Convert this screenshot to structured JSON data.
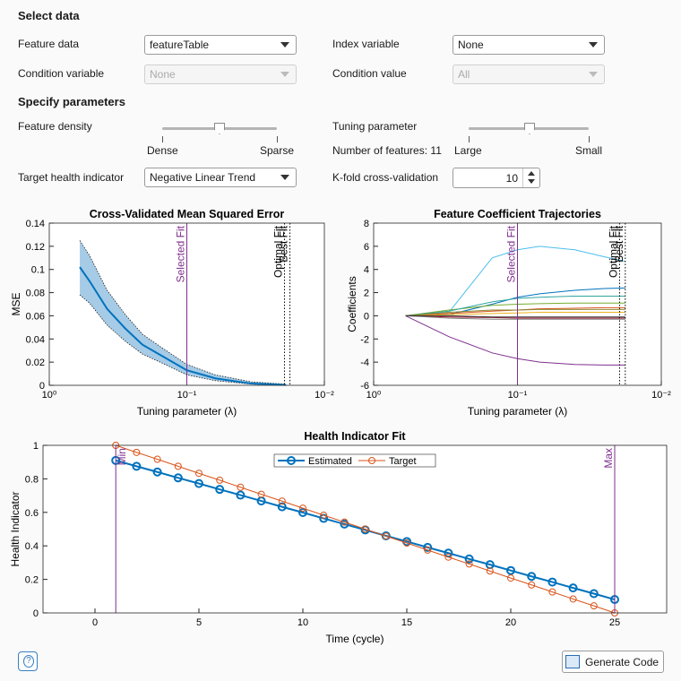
{
  "controls": {
    "select_data": {
      "title": "Select data",
      "feature_data": {
        "label": "Feature data",
        "value": "featureTable"
      },
      "index_variable": {
        "label": "Index variable",
        "value": "None"
      },
      "condition_variable": {
        "label": "Condition variable",
        "value": "None"
      },
      "condition_value": {
        "label": "Condition value",
        "value": "All"
      }
    },
    "specify_parameters": {
      "title": "Specify parameters",
      "feature_density": {
        "label": "Feature density",
        "min_label": "Dense",
        "max_label": "Sparse"
      },
      "tuning_parameter": {
        "label": "Tuning parameter",
        "min_label": "Large",
        "max_label": "Small"
      },
      "number_of_features": {
        "label": "Number of features:",
        "value": 11
      },
      "target_health_indicator": {
        "label": "Target health indicator",
        "value": "Negative Linear Trend"
      },
      "k_fold": {
        "label": "K-fold cross-validation",
        "value": 10
      }
    }
  },
  "chart_data": [
    {
      "type": "line",
      "title": "Cross-Validated Mean Squared Error",
      "xlabel": "Tuning  parameter  (λ)",
      "ylabel": "MSE",
      "xscale": "log",
      "xlim": [
        1,
        0.01
      ],
      "xticks": [
        {
          "value": 1,
          "label": "10⁰"
        },
        {
          "value": 0.1,
          "label": "10⁻¹"
        },
        {
          "value": 0.01,
          "label": "10⁻²"
        }
      ],
      "ylim": [
        0,
        0.14
      ],
      "yticks": [
        0,
        0.02,
        0.04,
        0.06,
        0.08,
        0.1,
        0.12,
        0.14
      ],
      "x": [
        0.6,
        0.51,
        0.38,
        0.28,
        0.21,
        0.15,
        0.1,
        0.062,
        0.034,
        0.019
      ],
      "series": [
        {
          "color": "#0072bd",
          "band_color": "#a6cbe6",
          "values": [
            0.102,
            0.09,
            0.066,
            0.049,
            0.035,
            0.025,
            0.013,
            0.006,
            0.0015,
            0.0003
          ],
          "upper": [
            0.125,
            0.112,
            0.082,
            0.061,
            0.044,
            0.032,
            0.018,
            0.009,
            0.003,
            0.001
          ],
          "lower": [
            0.078,
            0.071,
            0.052,
            0.038,
            0.027,
            0.019,
            0.009,
            0.004,
            0.001,
            0
          ]
        }
      ],
      "ref_lines": [
        {
          "x": 0.1,
          "label": "Selected Fit",
          "color": "#7e2f8e",
          "style": "solid"
        },
        {
          "x": 0.0195,
          "label": "Optimal Fit",
          "color": "#000000",
          "style": "dotted"
        },
        {
          "x": 0.0178,
          "label": "Best Fit",
          "color": "#000000",
          "style": "dotted"
        }
      ]
    },
    {
      "type": "line",
      "title": "Feature Coefficient Trajectories",
      "xlabel": "Tuning  parameter  (λ)",
      "ylabel": "Coefficients",
      "xscale": "log",
      "xlim": [
        1,
        0.01
      ],
      "xticks": [
        {
          "value": 1,
          "label": "10⁰"
        },
        {
          "value": 0.1,
          "label": "10⁻¹"
        },
        {
          "value": 0.01,
          "label": "10⁻²"
        }
      ],
      "ylim": [
        -6,
        8
      ],
      "yticks": [
        -6,
        -4,
        -2,
        0,
        2,
        4,
        6,
        8
      ],
      "x": [
        0.6,
        0.3,
        0.15,
        0.1,
        0.07,
        0.04,
        0.025,
        0.0178
      ],
      "series": [
        {
          "color": "#4dbeee",
          "values": [
            0,
            0.3,
            5.0,
            5.7,
            6.0,
            5.7,
            5.1,
            4.7
          ]
        },
        {
          "color": "#0072bd",
          "values": [
            0,
            0.1,
            1.0,
            1.6,
            1.9,
            2.2,
            2.35,
            2.4
          ]
        },
        {
          "color": "#7e2f8e",
          "values": [
            0,
            -1.8,
            -3.2,
            -3.7,
            -4.0,
            -4.2,
            -4.25,
            -4.25
          ]
        },
        {
          "color": "#d95319",
          "values": [
            0,
            0.2,
            0.4,
            0.5,
            0.6,
            0.65,
            0.7,
            0.7
          ]
        },
        {
          "color": "#edb120",
          "values": [
            0,
            0.1,
            0.2,
            0.25,
            0.3,
            0.3,
            0.3,
            0.3
          ]
        },
        {
          "color": "#77ac30",
          "values": [
            0,
            0.5,
            0.9,
            1.0,
            1.05,
            1.1,
            1.1,
            1.1
          ]
        },
        {
          "color": "#2fa4a0",
          "values": [
            0,
            0.4,
            1.2,
            1.5,
            1.6,
            1.7,
            1.7,
            1.7
          ]
        },
        {
          "color": "#a2142f",
          "values": [
            0,
            -0.1,
            -0.15,
            -0.2,
            -0.2,
            -0.2,
            -0.2,
            -0.2
          ]
        },
        {
          "color": "#808080",
          "values": [
            0,
            -0.2,
            -0.3,
            -0.3,
            -0.3,
            -0.3,
            -0.3,
            -0.3
          ]
        },
        {
          "color": "#8a8a3a",
          "values": [
            0,
            0.3,
            0.5,
            0.5,
            0.55,
            0.55,
            0.55,
            0.55
          ]
        },
        {
          "color": "#333333",
          "values": [
            0,
            0,
            -0.1,
            -0.1,
            -0.1,
            -0.1,
            -0.1,
            -0.1
          ]
        }
      ],
      "ref_lines": [
        {
          "x": 0.1,
          "label": "Selected Fit",
          "color": "#7e2f8e",
          "style": "solid"
        },
        {
          "x": 0.0195,
          "label": "Optimal Fit",
          "color": "#000000",
          "style": "dotted"
        },
        {
          "x": 0.0178,
          "label": "Best Fit",
          "color": "#000000",
          "style": "dotted"
        }
      ]
    },
    {
      "type": "line",
      "title": "Health Indicator Fit",
      "xlabel": "Time (cycle)",
      "ylabel": "Health Indicator",
      "xlim": [
        -2.5,
        27.5
      ],
      "xticks": [
        0,
        5,
        10,
        15,
        20,
        25
      ],
      "ylim": [
        0,
        1
      ],
      "yticks": [
        0,
        0.2,
        0.4,
        0.6,
        0.8,
        1
      ],
      "legend": "top",
      "x": [
        1,
        2,
        3,
        4,
        5,
        6,
        7,
        8,
        9,
        10,
        11,
        12,
        13,
        14,
        15,
        16,
        17,
        18,
        19,
        20,
        21,
        22,
        23,
        24,
        25
      ],
      "series": [
        {
          "name": "Estimated",
          "color": "#0072bd",
          "line_width": 2,
          "marker_size": 4,
          "values": [
            0.91,
            0.875,
            0.841,
            0.806,
            0.772,
            0.737,
            0.703,
            0.668,
            0.633,
            0.599,
            0.564,
            0.53,
            0.495,
            0.46,
            0.426,
            0.391,
            0.357,
            0.322,
            0.288,
            0.253,
            0.218,
            0.184,
            0.149,
            0.115,
            0.08
          ]
        },
        {
          "name": "Target",
          "color": "#d95319",
          "line_width": 1,
          "marker_size": 3.5,
          "values": [
            1,
            0.958,
            0.917,
            0.875,
            0.833,
            0.792,
            0.75,
            0.708,
            0.667,
            0.625,
            0.583,
            0.542,
            0.5,
            0.458,
            0.417,
            0.375,
            0.333,
            0.292,
            0.25,
            0.208,
            0.167,
            0.125,
            0.083,
            0.042,
            0
          ]
        }
      ],
      "ref_lines": [
        {
          "x": 1,
          "label": "Min",
          "color": "#7e2f8e",
          "style": "solid"
        },
        {
          "x": 25,
          "label": "Max",
          "color": "#7e2f8e",
          "style": "solid"
        }
      ]
    }
  ],
  "footer": {
    "help": "?",
    "generate_code": "Generate Code"
  }
}
